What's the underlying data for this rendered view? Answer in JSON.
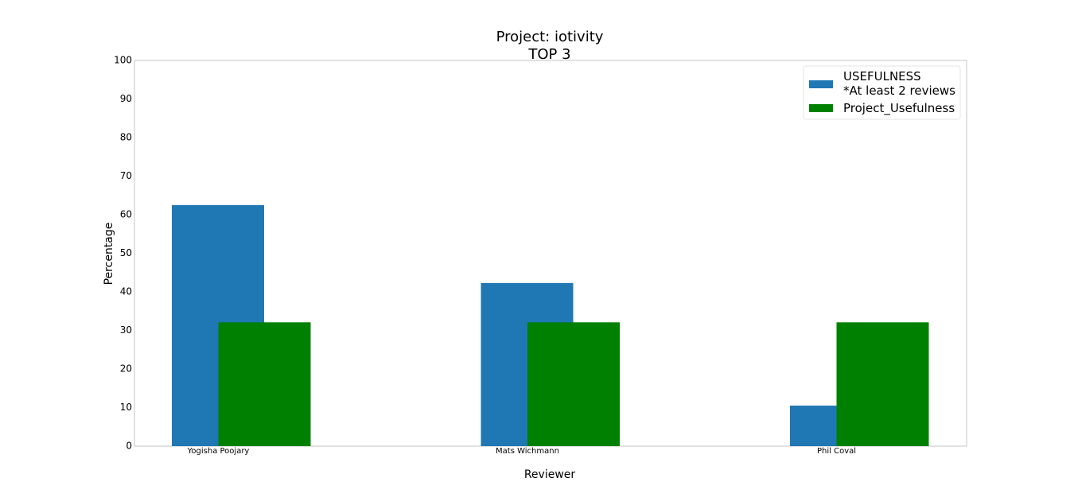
{
  "chart_data": {
    "type": "bar",
    "title": [
      "Project: iotivity",
      "TOP 3"
    ],
    "xlabel": "Reviewer",
    "ylabel": "Percentage",
    "ylim": [
      0,
      100
    ],
    "yticks": [
      0,
      10,
      20,
      30,
      40,
      50,
      60,
      70,
      80,
      90,
      100
    ],
    "categories": [
      "Yogisha Poojary",
      "Mats Wichmann",
      "Phil Coval"
    ],
    "series": [
      {
        "name": "USEFULNESS\n*At least 2 reviews",
        "color": "#1f77b4",
        "values": [
          62.5,
          42.3,
          10.5
        ]
      },
      {
        "name": "Project_Usefulness",
        "color": "#008000",
        "values": [
          32.1,
          32.1,
          32.1
        ]
      }
    ],
    "legend": "top-right",
    "grid": false
  }
}
